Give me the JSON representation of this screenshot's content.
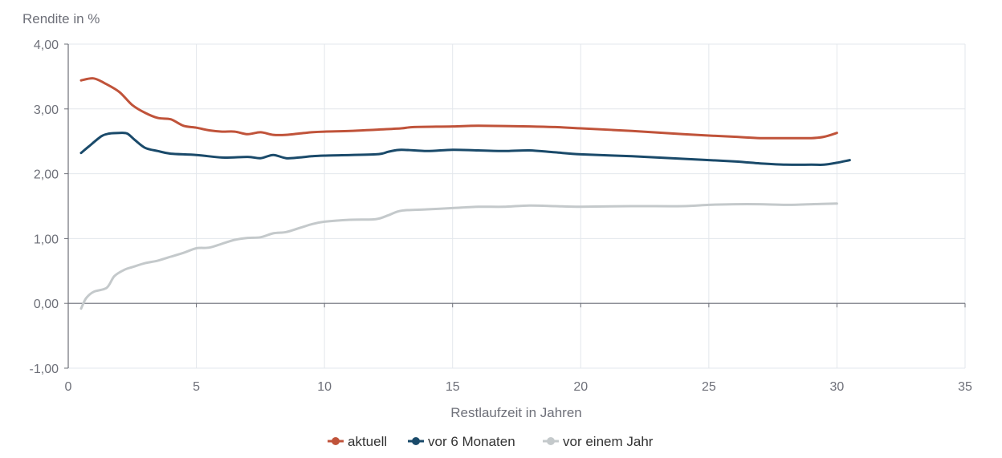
{
  "chart_data": {
    "type": "line",
    "xlabel": "Restlaufzeit in Jahren",
    "ylabel": "Rendite in  %",
    "xlim": [
      0,
      35
    ],
    "ylim": [
      -1,
      4
    ],
    "xticks": [
      0,
      5,
      10,
      15,
      20,
      25,
      30,
      35
    ],
    "yticks": [
      -1,
      0,
      1,
      2,
      3,
      4
    ],
    "xtick_labels": [
      "0",
      "5",
      "10",
      "15",
      "20",
      "25",
      "30",
      "35"
    ],
    "ytick_labels": [
      "-1,00",
      "0,00",
      "1,00",
      "2,00",
      "3,00",
      "4,00"
    ],
    "grid": true,
    "legend_position": "bottom-center",
    "series": [
      {
        "name": "aktuell",
        "color": "#c0533a",
        "points": [
          [
            0.5,
            3.44
          ],
          [
            1.0,
            3.47
          ],
          [
            1.5,
            3.38
          ],
          [
            2.0,
            3.26
          ],
          [
            2.5,
            3.06
          ],
          [
            3.0,
            2.94
          ],
          [
            3.5,
            2.86
          ],
          [
            4.0,
            2.84
          ],
          [
            4.5,
            2.74
          ],
          [
            5.0,
            2.71
          ],
          [
            5.5,
            2.67
          ],
          [
            6.0,
            2.65
          ],
          [
            6.5,
            2.65
          ],
          [
            7.0,
            2.61
          ],
          [
            7.5,
            2.64
          ],
          [
            8.0,
            2.6
          ],
          [
            8.5,
            2.6
          ],
          [
            9.0,
            2.62
          ],
          [
            9.5,
            2.64
          ],
          [
            10.0,
            2.65
          ],
          [
            11.0,
            2.66
          ],
          [
            12.0,
            2.68
          ],
          [
            13.0,
            2.7
          ],
          [
            13.5,
            2.72
          ],
          [
            15.0,
            2.73
          ],
          [
            16.0,
            2.74
          ],
          [
            18.0,
            2.73
          ],
          [
            19.0,
            2.72
          ],
          [
            20.0,
            2.7
          ],
          [
            22.0,
            2.66
          ],
          [
            24.0,
            2.61
          ],
          [
            26.0,
            2.57
          ],
          [
            27.0,
            2.55
          ],
          [
            28.0,
            2.55
          ],
          [
            29.0,
            2.55
          ],
          [
            29.5,
            2.57
          ],
          [
            30.0,
            2.63
          ]
        ]
      },
      {
        "name": "vor 6 Monaten",
        "color": "#1a4a6a",
        "points": [
          [
            0.5,
            2.32
          ],
          [
            0.8,
            2.42
          ],
          [
            1.3,
            2.58
          ],
          [
            1.6,
            2.62
          ],
          [
            2.0,
            2.63
          ],
          [
            2.3,
            2.62
          ],
          [
            2.6,
            2.52
          ],
          [
            3.0,
            2.4
          ],
          [
            3.5,
            2.35
          ],
          [
            4.0,
            2.31
          ],
          [
            5.0,
            2.29
          ],
          [
            6.0,
            2.25
          ],
          [
            7.0,
            2.26
          ],
          [
            7.5,
            2.24
          ],
          [
            8.0,
            2.29
          ],
          [
            8.5,
            2.24
          ],
          [
            9.0,
            2.25
          ],
          [
            9.5,
            2.27
          ],
          [
            10.0,
            2.28
          ],
          [
            12.0,
            2.3
          ],
          [
            12.5,
            2.34
          ],
          [
            13.0,
            2.37
          ],
          [
            14.0,
            2.35
          ],
          [
            15.0,
            2.37
          ],
          [
            16.0,
            2.36
          ],
          [
            17.0,
            2.35
          ],
          [
            18.0,
            2.36
          ],
          [
            19.0,
            2.33
          ],
          [
            20.0,
            2.3
          ],
          [
            22.0,
            2.27
          ],
          [
            24.0,
            2.23
          ],
          [
            26.0,
            2.19
          ],
          [
            27.0,
            2.16
          ],
          [
            28.0,
            2.14
          ],
          [
            29.0,
            2.14
          ],
          [
            29.5,
            2.14
          ],
          [
            30.0,
            2.17
          ],
          [
            30.5,
            2.21
          ]
        ]
      },
      {
        "name": "vor einem Jahr",
        "color": "#c4c9cb",
        "points": [
          [
            0.5,
            -0.08
          ],
          [
            0.7,
            0.08
          ],
          [
            1.0,
            0.18
          ],
          [
            1.5,
            0.24
          ],
          [
            1.8,
            0.42
          ],
          [
            2.2,
            0.52
          ],
          [
            2.5,
            0.56
          ],
          [
            3.0,
            0.62
          ],
          [
            3.5,
            0.66
          ],
          [
            4.0,
            0.72
          ],
          [
            4.5,
            0.78
          ],
          [
            5.0,
            0.85
          ],
          [
            5.5,
            0.86
          ],
          [
            6.0,
            0.92
          ],
          [
            6.5,
            0.98
          ],
          [
            7.0,
            1.01
          ],
          [
            7.5,
            1.02
          ],
          [
            8.0,
            1.08
          ],
          [
            8.5,
            1.1
          ],
          [
            9.0,
            1.16
          ],
          [
            9.5,
            1.22
          ],
          [
            10.0,
            1.26
          ],
          [
            11.0,
            1.29
          ],
          [
            12.0,
            1.3
          ],
          [
            12.5,
            1.36
          ],
          [
            13.0,
            1.43
          ],
          [
            14.0,
            1.45
          ],
          [
            15.0,
            1.47
          ],
          [
            16.0,
            1.49
          ],
          [
            17.0,
            1.49
          ],
          [
            18.0,
            1.51
          ],
          [
            19.0,
            1.5
          ],
          [
            20.0,
            1.49
          ],
          [
            22.0,
            1.5
          ],
          [
            24.0,
            1.5
          ],
          [
            25.0,
            1.52
          ],
          [
            26.0,
            1.53
          ],
          [
            27.0,
            1.53
          ],
          [
            28.0,
            1.52
          ],
          [
            29.0,
            1.53
          ],
          [
            30.0,
            1.54
          ]
        ]
      }
    ]
  }
}
